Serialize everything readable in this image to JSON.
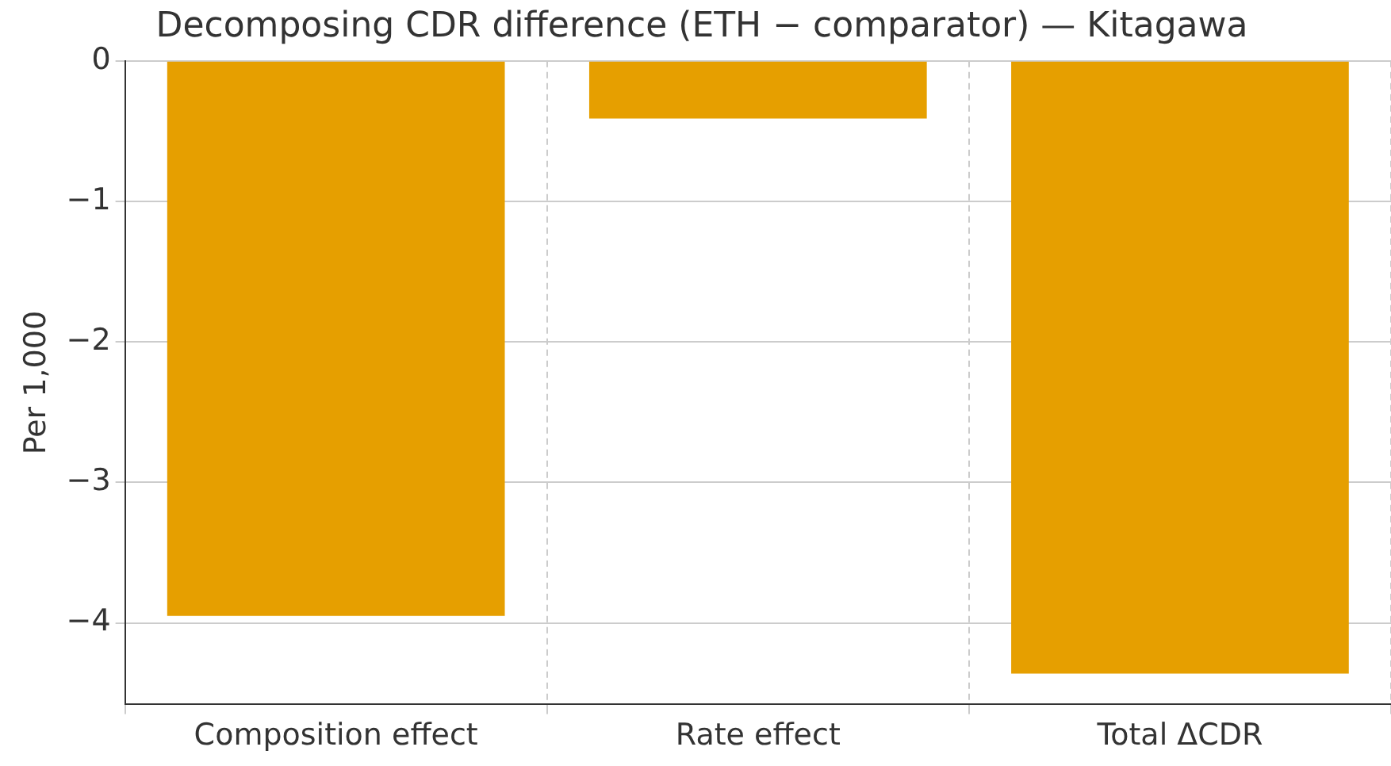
{
  "chart_data": {
    "type": "bar",
    "title": "Decomposing CDR difference (ETH − comparator) — Kitagawa",
    "ylabel": "Per 1,000",
    "categories": [
      "Composition effect",
      "Rate effect",
      "Total ΔCDR"
    ],
    "values": [
      -3.95,
      -0.41,
      -4.36
    ],
    "color": "#e69f00",
    "ylim": [
      -4.58,
      0
    ],
    "yticks": [
      {
        "value": -4,
        "label": "−4"
      },
      {
        "value": -3,
        "label": "−3"
      },
      {
        "value": -2,
        "label": "−2"
      },
      {
        "value": -1,
        "label": "−1"
      },
      0
    ],
    "grid": true
  }
}
